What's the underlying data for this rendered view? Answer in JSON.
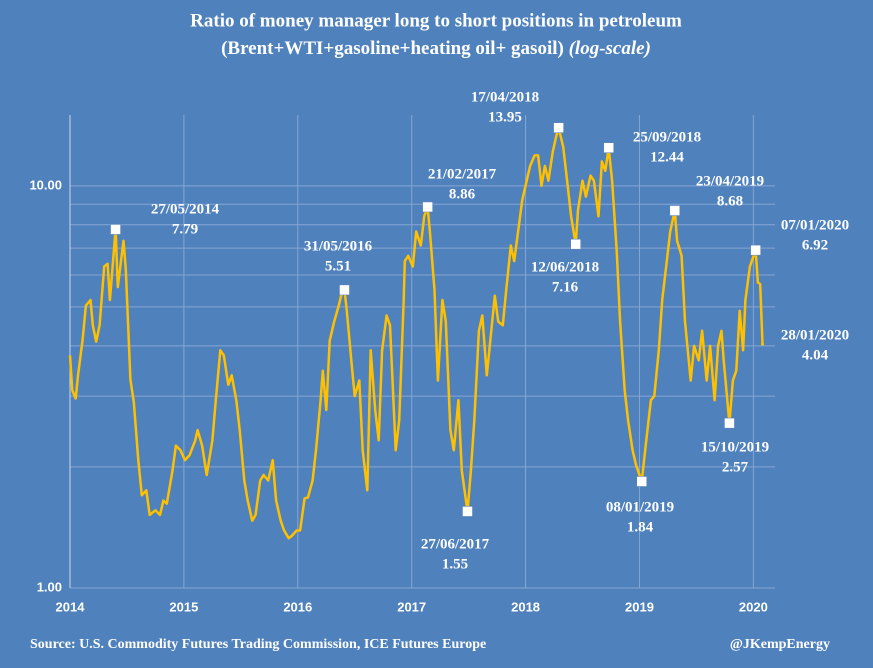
{
  "chart_data": {
    "type": "line",
    "title": "Ratio of money manager long to short positions in petroleum",
    "subtitle": "(Brent+WTI+gasoline+heating oil+ gasoil)",
    "subtitle_note": "(log-scale)",
    "source": "Source: U.S. Commodity Futures Trading Commission, ICE Futures Europe",
    "credit": "@JKempEnergy",
    "log_scale": true,
    "grid": true,
    "xlim": [
      2014,
      2020.19
    ],
    "xticks": [
      2014,
      2015,
      2016,
      2017,
      2018,
      2019,
      2020
    ],
    "ylim": [
      1,
      15
    ],
    "yticks": [
      {
        "value": 1,
        "label": "1.00"
      },
      {
        "value": 10,
        "label": "10.00"
      }
    ],
    "minor_yticks": [
      2,
      3,
      4,
      5,
      6,
      7,
      8,
      9
    ],
    "series": [
      {
        "color": "#ffc000",
        "x": [
          2014.0,
          2014.02,
          2014.05,
          2014.07,
          2014.11,
          2014.14,
          2014.18,
          2014.2,
          2014.23,
          2014.26,
          2014.3,
          2014.33,
          2014.35,
          2014.4,
          2014.42,
          2014.47,
          2014.49,
          2014.53,
          2014.56,
          2014.6,
          2014.63,
          2014.67,
          2014.7,
          2014.75,
          2014.79,
          2014.82,
          2014.85,
          2014.9,
          2014.93,
          2014.97,
          2015.01,
          2015.05,
          2015.1,
          2015.12,
          2015.16,
          2015.2,
          2015.25,
          2015.28,
          2015.32,
          2015.35,
          2015.39,
          2015.42,
          2015.46,
          2015.49,
          2015.53,
          2015.56,
          2015.6,
          2015.63,
          2015.67,
          2015.7,
          2015.74,
          2015.78,
          2015.81,
          2015.85,
          2015.88,
          2015.92,
          2015.95,
          2015.99,
          2016.02,
          2016.06,
          2016.09,
          2016.13,
          2016.16,
          2016.2,
          2016.22,
          2016.25,
          2016.28,
          2016.32,
          2016.36,
          2016.38,
          2016.41,
          2016.43,
          2016.47,
          2016.5,
          2016.54,
          2016.57,
          2016.61,
          2016.64,
          2016.68,
          2016.71,
          2016.74,
          2016.78,
          2016.81,
          2016.86,
          2016.89,
          2016.93,
          2016.94,
          2016.97,
          2017.01,
          2017.04,
          2017.08,
          2017.11,
          2017.14,
          2017.16,
          2017.2,
          2017.23,
          2017.27,
          2017.3,
          2017.34,
          2017.37,
          2017.41,
          2017.44,
          2017.49,
          2017.52,
          2017.55,
          2017.59,
          2017.62,
          2017.66,
          2017.69,
          2017.73,
          2017.76,
          2017.8,
          2017.83,
          2017.87,
          2017.9,
          2017.94,
          2017.97,
          2018.01,
          2018.04,
          2018.08,
          2018.11,
          2018.14,
          2018.17,
          2018.2,
          2018.24,
          2018.27,
          2018.29,
          2018.33,
          2018.37,
          2018.4,
          2018.44,
          2018.46,
          2018.5,
          2018.53,
          2018.57,
          2018.6,
          2018.64,
          2018.67,
          2018.7,
          2018.73,
          2018.76,
          2018.8,
          2018.83,
          2018.87,
          2018.9,
          2018.94,
          2018.97,
          2019.02,
          2019.06,
          2019.1,
          2019.13,
          2019.17,
          2019.2,
          2019.24,
          2019.27,
          2019.31,
          2019.33,
          2019.37,
          2019.4,
          2019.45,
          2019.48,
          2019.52,
          2019.55,
          2019.59,
          2019.62,
          2019.66,
          2019.69,
          2019.72,
          2019.74,
          2019.79,
          2019.82,
          2019.85,
          2019.88,
          2019.91,
          2019.93,
          2019.97,
          2020.02,
          2020.04,
          2020.06,
          2020.08
        ],
        "values": [
          3.79,
          3.1,
          2.96,
          3.38,
          4.12,
          5.04,
          5.2,
          4.5,
          4.1,
          4.5,
          6.3,
          6.4,
          5.2,
          7.79,
          5.6,
          7.3,
          6.2,
          3.3,
          2.9,
          2.08,
          1.7,
          1.75,
          1.52,
          1.56,
          1.52,
          1.65,
          1.62,
          1.96,
          2.26,
          2.2,
          2.08,
          2.14,
          2.33,
          2.47,
          2.26,
          1.91,
          2.33,
          2.93,
          3.9,
          3.79,
          3.2,
          3.38,
          2.93,
          2.47,
          1.85,
          1.65,
          1.47,
          1.52,
          1.85,
          1.91,
          1.85,
          2.08,
          1.65,
          1.47,
          1.39,
          1.33,
          1.35,
          1.39,
          1.39,
          1.67,
          1.68,
          1.85,
          2.2,
          2.93,
          3.47,
          2.77,
          4.12,
          4.6,
          5.04,
          5.33,
          5.51,
          4.89,
          3.68,
          3.0,
          3.28,
          2.2,
          1.75,
          3.9,
          2.77,
          2.33,
          3.9,
          4.76,
          4.5,
          2.2,
          2.61,
          5.2,
          6.5,
          6.7,
          6.3,
          7.7,
          7.1,
          8.4,
          8.86,
          7.7,
          5.5,
          3.28,
          5.2,
          4.6,
          2.47,
          2.2,
          2.93,
          1.96,
          1.55,
          1.96,
          2.61,
          4.36,
          4.76,
          3.38,
          4.12,
          5.33,
          4.6,
          4.5,
          5.5,
          7.1,
          6.5,
          7.9,
          9.2,
          10.3,
          11.2,
          11.9,
          11.9,
          10.0,
          11.2,
          10.3,
          12.2,
          13.3,
          13.95,
          12.5,
          10.0,
          8.4,
          7.16,
          8.7,
          10.3,
          9.4,
          10.6,
          10.3,
          8.4,
          11.5,
          10.9,
          12.44,
          10.3,
          6.9,
          4.6,
          3.1,
          2.61,
          2.2,
          2.02,
          1.84,
          2.33,
          2.93,
          3.0,
          3.9,
          5.2,
          6.5,
          7.7,
          8.68,
          7.3,
          6.7,
          4.6,
          3.28,
          4.0,
          3.68,
          4.36,
          3.28,
          4.0,
          2.93,
          4.0,
          4.36,
          3.68,
          2.57,
          3.28,
          3.47,
          4.89,
          3.9,
          5.2,
          6.3,
          6.92,
          5.75,
          5.7,
          4.04
        ]
      }
    ],
    "annotations": [
      {
        "x": 2014.4,
        "date": "27/05/2014",
        "value": 7.79
      },
      {
        "x": 2016.41,
        "date": "31/05/2016",
        "value": 5.51
      },
      {
        "x": 2017.14,
        "date": "21/02/2017",
        "value": 8.86
      },
      {
        "x": 2017.49,
        "date": "27/06/2017",
        "value": 1.55
      },
      {
        "x": 2018.29,
        "date": "17/04/2018",
        "value": 13.95
      },
      {
        "x": 2018.44,
        "date": "12/06/2018",
        "value": 7.16
      },
      {
        "x": 2018.73,
        "date": "25/09/2018",
        "value": 12.44
      },
      {
        "x": 2019.02,
        "date": "08/01/2019",
        "value": 1.84
      },
      {
        "x": 2019.31,
        "date": "23/04/2019",
        "value": 8.68
      },
      {
        "x": 2019.79,
        "date": "15/10/2019",
        "value": 2.57
      },
      {
        "x": 2020.02,
        "date": "07/01/2020",
        "value": 6.92
      },
      {
        "x": 2020.08,
        "date": "28/01/2020",
        "value": 4.04
      }
    ]
  }
}
